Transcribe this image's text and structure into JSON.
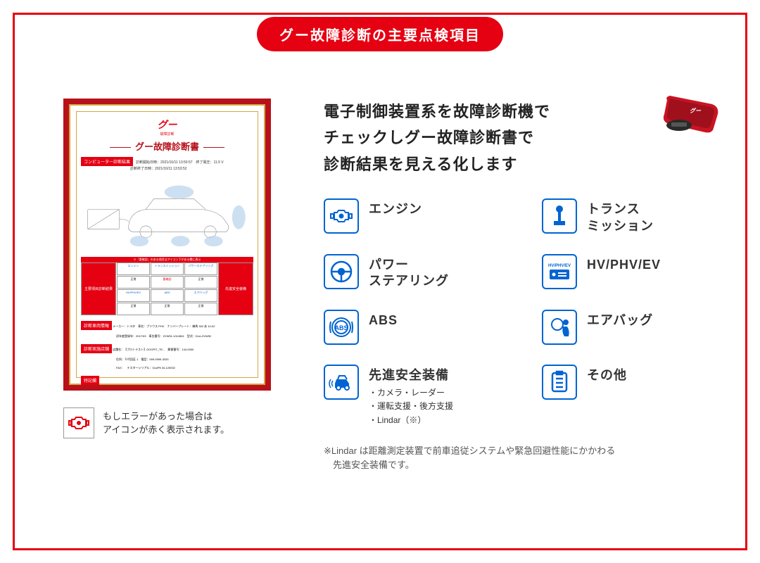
{
  "colors": {
    "red": "#e50012",
    "darkred": "#b8111a",
    "blue": "#0064d2",
    "gold": "#d4a843",
    "text": "#333"
  },
  "pill": "グー故障診断の主要点検項目",
  "cert": {
    "logo": "グー",
    "logo_sub": "故障診断",
    "title": "グー故障診断書",
    "bar1": "コンピューター診断結果",
    "bar1_info": "診断開始日時：2021/10/11 13:50:57　終了電圧：11.5 V",
    "bar1_info2": "診断終了日時：2021/10/11 13:53:52",
    "grid_hdr": "主要項目診断結果",
    "grid_warn": "※「要確認」のある項目はアイコン下がある欄に表示",
    "cells": [
      [
        "エンジン",
        "トランスミッション",
        "パワーステアリング"
      ],
      [
        "正常",
        "要確認",
        "正常"
      ],
      [
        "HV/PHV/EV",
        "ABS",
        "エアバッグ",
        "その他"
      ],
      [
        "正常",
        "正常",
        "正常",
        "正常"
      ]
    ],
    "side_items": [
      "カメラ",
      "レーダー",
      "後方支援",
      "運転支援",
      "LiDAR"
    ],
    "side_label": "先進安全装備",
    "side_tag": "要確認○",
    "info_bar2": "診断車両情報",
    "info2": "メーカー：トヨタ　車名：プリウス PHV　ナンバープレート：練馬 302 あ 10-02",
    "info2b": "初年度登録年：2017/03　車台番号：ZVW51-1014561　型式：DLA-ZVW52",
    "info_bar3": "診断実施店舗",
    "info3": "店舗名：【プロトテスト】GOOPIT_TE...　郵便番号：144-0000",
    "info3b": "住所：千代田区 1　電話：099-0999-3033",
    "info3c": "FAX：　テスターシリアル：GooPit 34-120002",
    "info_bar4": "特記欄"
  },
  "note": "もしエラーがあった場合は\nアイコンが赤く表示されます。",
  "headline": "電子制御装置系を故障診断機で\nチェックしグー故障診断書で\n診断結果を見える化します",
  "items": [
    {
      "icon": "engine",
      "label": "エンジン"
    },
    {
      "icon": "trans",
      "label": "トランス\nミッション"
    },
    {
      "icon": "steering",
      "label": "パワー\nステアリング"
    },
    {
      "icon": "hvev",
      "label": "HV/PHV/EV"
    },
    {
      "icon": "abs",
      "label": "ABS"
    },
    {
      "icon": "airbag",
      "label": "エアバッグ"
    },
    {
      "icon": "adas",
      "label": "先進安全装備",
      "sub": "・カメラ・レーダー\n・運転支援・後方支援\n・Lindar（※）"
    },
    {
      "icon": "other",
      "label": "その他"
    }
  ],
  "footnote": "※Lindar は距離測定装置で前車追従システムや緊急回避性能にかかわる\n　先進安全装備です。"
}
